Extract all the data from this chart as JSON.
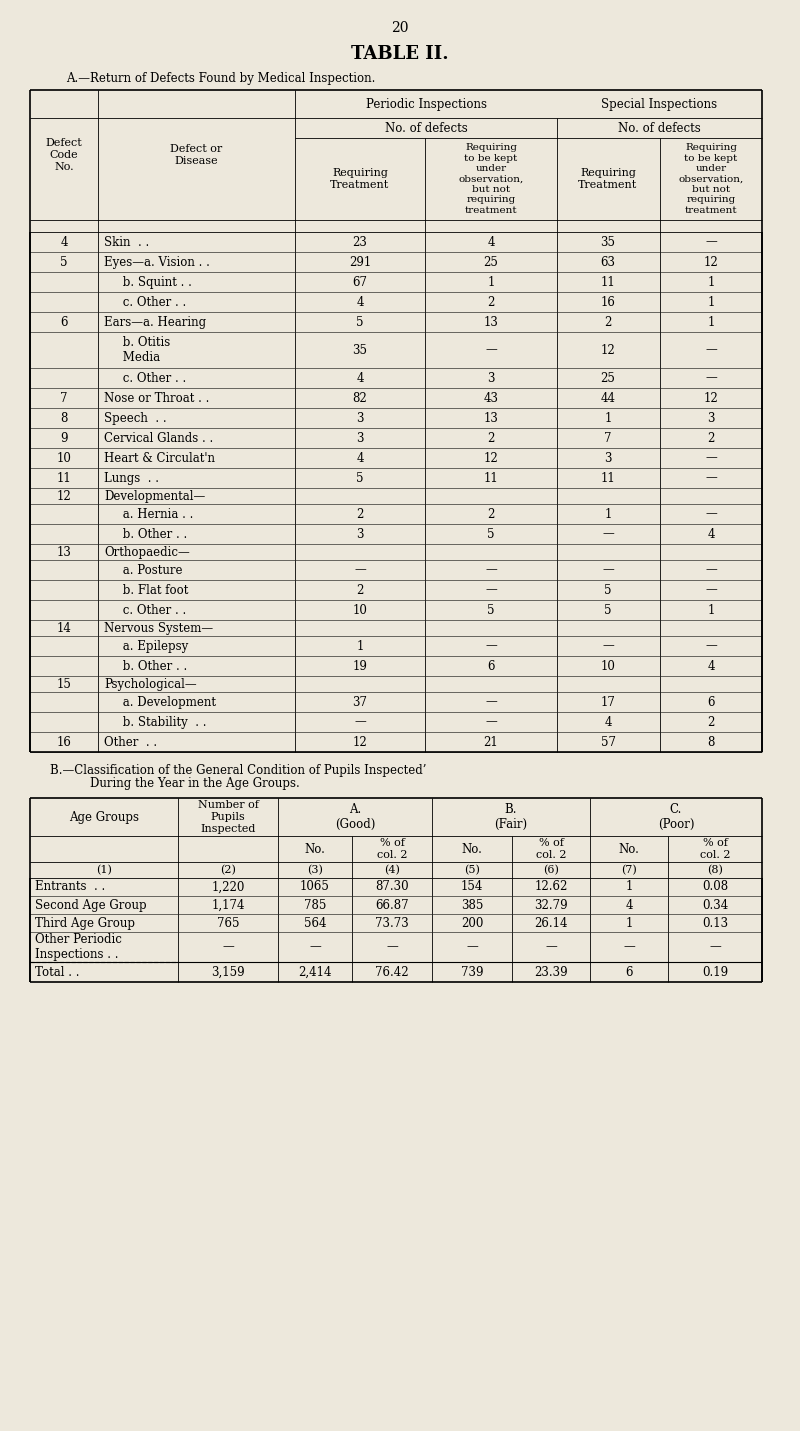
{
  "bg_color": "#ede8dc",
  "page_number": "20",
  "title": "TABLE II.",
  "section_a_title": "A.—Return of Defects Found by Medical Inspection.",
  "table_a_rows": [
    {
      "code": "4",
      "disease": "Skin  . .",
      "line2": "",
      "p_treat": "23",
      "p_obs": "4",
      "s_treat": "35",
      "s_obs": "—"
    },
    {
      "code": "5",
      "disease": "Eyes—a. Vision . .",
      "line2": "",
      "p_treat": "291",
      "p_obs": "25",
      "s_treat": "63",
      "s_obs": "12"
    },
    {
      "code": "",
      "disease": "     b. Squint . .",
      "line2": "",
      "p_treat": "67",
      "p_obs": "1",
      "s_treat": "11",
      "s_obs": "1"
    },
    {
      "code": "",
      "disease": "     c. Other . .",
      "line2": "",
      "p_treat": "4",
      "p_obs": "2",
      "s_treat": "16",
      "s_obs": "1"
    },
    {
      "code": "6",
      "disease": "Ears—a. Hearing",
      "line2": "",
      "p_treat": "5",
      "p_obs": "13",
      "s_treat": "2",
      "s_obs": "1"
    },
    {
      "code": "",
      "disease": "     b. Otitis",
      "line2": "     Media",
      "p_treat": "35",
      "p_obs": "—",
      "s_treat": "12",
      "s_obs": "—"
    },
    {
      "code": "",
      "disease": "     c. Other . .",
      "line2": "",
      "p_treat": "4",
      "p_obs": "3",
      "s_treat": "25",
      "s_obs": "—"
    },
    {
      "code": "7",
      "disease": "Nose or Throat . .",
      "line2": "",
      "p_treat": "82",
      "p_obs": "43",
      "s_treat": "44",
      "s_obs": "12"
    },
    {
      "code": "8",
      "disease": "Speech  . .",
      "line2": "",
      "p_treat": "3",
      "p_obs": "13",
      "s_treat": "1",
      "s_obs": "3"
    },
    {
      "code": "9",
      "disease": "Cervical Glands . .",
      "line2": "",
      "p_treat": "3",
      "p_obs": "2",
      "s_treat": "7",
      "s_obs": "2"
    },
    {
      "code": "10",
      "disease": "Heart & Circulat'n",
      "line2": "",
      "p_treat": "4",
      "p_obs": "12",
      "s_treat": "3",
      "s_obs": "—"
    },
    {
      "code": "11",
      "disease": "Lungs  . .",
      "line2": "",
      "p_treat": "5",
      "p_obs": "11",
      "s_treat": "11",
      "s_obs": "—"
    },
    {
      "code": "12",
      "disease": "Developmental—",
      "line2": "",
      "p_treat": "",
      "p_obs": "",
      "s_treat": "",
      "s_obs": ""
    },
    {
      "code": "",
      "disease": "     a. Hernia . .",
      "line2": "",
      "p_treat": "2",
      "p_obs": "2",
      "s_treat": "1",
      "s_obs": "—"
    },
    {
      "code": "",
      "disease": "     b. Other . .",
      "line2": "",
      "p_treat": "3",
      "p_obs": "5",
      "s_treat": "—",
      "s_obs": "4"
    },
    {
      "code": "13",
      "disease": "Orthopaedic—",
      "line2": "",
      "p_treat": "",
      "p_obs": "",
      "s_treat": "",
      "s_obs": ""
    },
    {
      "code": "",
      "disease": "     a. Posture",
      "line2": "",
      "p_treat": "—",
      "p_obs": "—",
      "s_treat": "—",
      "s_obs": "—"
    },
    {
      "code": "",
      "disease": "     b. Flat foot",
      "line2": "",
      "p_treat": "2",
      "p_obs": "—",
      "s_treat": "5",
      "s_obs": "—"
    },
    {
      "code": "",
      "disease": "     c. Other . .",
      "line2": "",
      "p_treat": "10",
      "p_obs": "5",
      "s_treat": "5",
      "s_obs": "1"
    },
    {
      "code": "14",
      "disease": "Nervous System—",
      "line2": "",
      "p_treat": "",
      "p_obs": "",
      "s_treat": "",
      "s_obs": ""
    },
    {
      "code": "",
      "disease": "     a. Epilepsy",
      "line2": "",
      "p_treat": "1",
      "p_obs": "—",
      "s_treat": "—",
      "s_obs": "—"
    },
    {
      "code": "",
      "disease": "     b. Other . .",
      "line2": "",
      "p_treat": "19",
      "p_obs": "6",
      "s_treat": "10",
      "s_obs": "4"
    },
    {
      "code": "15",
      "disease": "Psychological—",
      "line2": "",
      "p_treat": "",
      "p_obs": "",
      "s_treat": "",
      "s_obs": ""
    },
    {
      "code": "",
      "disease": "     a. Development",
      "line2": "",
      "p_treat": "37",
      "p_obs": "—",
      "s_treat": "17",
      "s_obs": "6"
    },
    {
      "code": "",
      "disease": "     b. Stability  . .",
      "line2": "",
      "p_treat": "—",
      "p_obs": "—",
      "s_treat": "4",
      "s_obs": "2"
    },
    {
      "code": "16",
      "disease": "Other  . .",
      "line2": "",
      "p_treat": "12",
      "p_obs": "21",
      "s_treat": "57",
      "s_obs": "8"
    }
  ],
  "table_b_rows": [
    {
      "group": "Entrants  . .",
      "inspected": "1,220",
      "a_no": "1065",
      "a_pct": "87.30",
      "b_no": "154",
      "b_pct": "12.62",
      "c_no": "1",
      "c_pct": "0.08"
    },
    {
      "group": "Second Age Group",
      "inspected": "1,174",
      "a_no": "785",
      "a_pct": "66.87",
      "b_no": "385",
      "b_pct": "32.79",
      "c_no": "4",
      "c_pct": "0.34"
    },
    {
      "group": "Third Age Group",
      "inspected": "765",
      "a_no": "564",
      "a_pct": "73.73",
      "b_no": "200",
      "b_pct": "26.14",
      "c_no": "1",
      "c_pct": "0.13"
    },
    {
      "group": "Other Periodic\nInspections . .",
      "inspected": "—",
      "a_no": "—",
      "a_pct": "—",
      "b_no": "—",
      "b_pct": "—",
      "c_no": "—",
      "c_pct": "—"
    }
  ],
  "table_b_total": {
    "group": "Total . .",
    "inspected": "3,159",
    "a_no": "2,414",
    "a_pct": "76.42",
    "b_no": "739",
    "b_pct": "23.39",
    "c_no": "6",
    "c_pct": "0.19"
  }
}
